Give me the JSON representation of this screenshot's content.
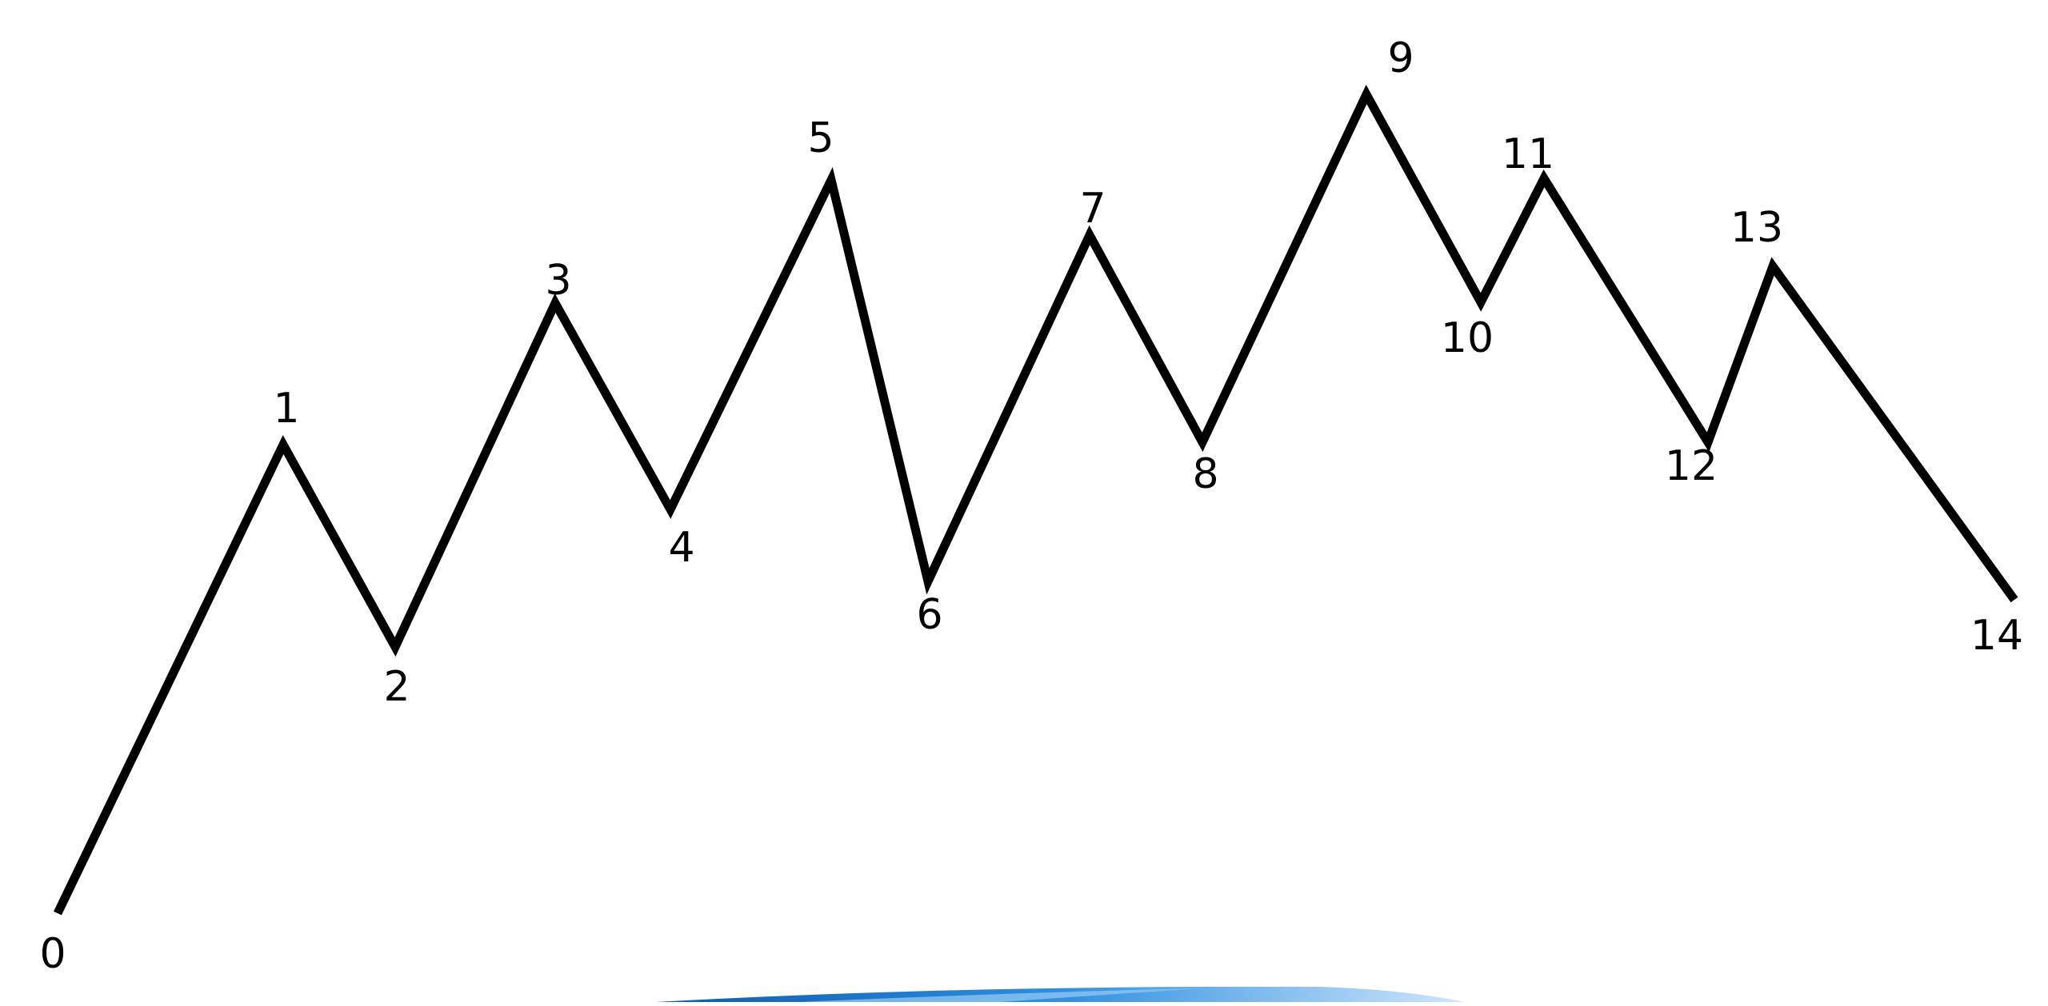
{
  "diagram": {
    "line_color": "#000000",
    "background": "#ffffff",
    "points": [
      {
        "label": "0",
        "kind": "low"
      },
      {
        "label": "1",
        "kind": "high"
      },
      {
        "label": "2",
        "kind": "low"
      },
      {
        "label": "3",
        "kind": "high"
      },
      {
        "label": "4",
        "kind": "low"
      },
      {
        "label": "5",
        "kind": "high"
      },
      {
        "label": "6",
        "kind": "low"
      },
      {
        "label": "7",
        "kind": "high"
      },
      {
        "label": "8",
        "kind": "low"
      },
      {
        "label": "9",
        "kind": "high"
      },
      {
        "label": "10",
        "kind": "low"
      },
      {
        "label": "11",
        "kind": "high"
      },
      {
        "label": "12",
        "kind": "low"
      },
      {
        "label": "13",
        "kind": "high"
      },
      {
        "label": "14",
        "kind": "low"
      }
    ]
  },
  "footer_swoosh": {
    "colors": [
      "#0b5cad",
      "#2f8fe0",
      "#cfe6fb"
    ]
  }
}
